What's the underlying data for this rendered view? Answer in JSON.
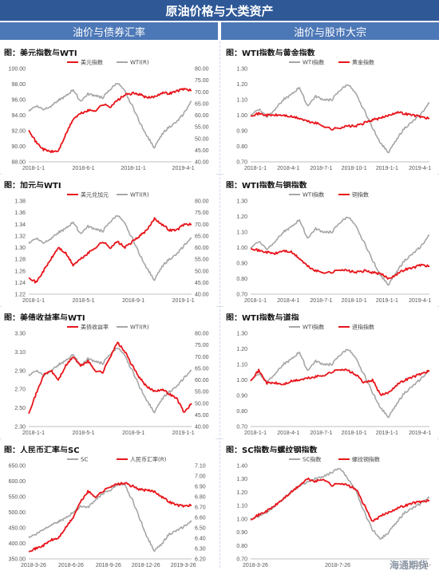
{
  "header": {
    "title": "原油价格与大类资产",
    "left_section": "油价与债券汇率",
    "right_section": "油价与股市大宗"
  },
  "watermark": "海通期货",
  "colors": {
    "red": "#e8151b",
    "gray": "#a6a6a6",
    "title_bg": "#2f5897",
    "section_bg": "#4d78b7"
  },
  "chart_data": [
    {
      "id": "usd-wti",
      "type": "line",
      "title": "图：美元指数与WTI",
      "x_ticks": [
        "2018-1-1",
        "2018-6-1",
        "2018-11-1",
        "2019-4-1"
      ],
      "left_axis": {
        "ylim": [
          88,
          100
        ],
        "ticks": [
          "88.00",
          "90.00",
          "92.00",
          "94.00",
          "96.00",
          "98.00",
          "100.00"
        ]
      },
      "right_axis": {
        "ylim": [
          40,
          80
        ],
        "ticks": [
          "40.00",
          "45.00",
          "50.00",
          "55.00",
          "60.00",
          "65.00",
          "70.00",
          "75.00",
          "80.00"
        ]
      },
      "series": [
        {
          "name": "美元指数",
          "color": "red",
          "axis": "left",
          "values": [
            92.2,
            90.5,
            89.6,
            89.3,
            89.4,
            91.5,
            93.5,
            94.2,
            94.6,
            94.6,
            95.4,
            95.1,
            95.9,
            96.6,
            96.8,
            96.7,
            96.2,
            96.4,
            96.9,
            96.8,
            97.1,
            97.4,
            97.2
          ]
        },
        {
          "name": "WTI(R)",
          "color": "gray",
          "axis": "right",
          "values": [
            62,
            64,
            62.5,
            64,
            66.5,
            68,
            71,
            66,
            69,
            68.5,
            67.5,
            71,
            74,
            70,
            64,
            57,
            51,
            46,
            52,
            55,
            57,
            61,
            66
          ]
        }
      ]
    },
    {
      "id": "wti-gold",
      "type": "line",
      "title": "图：WTI指数与黄金指数",
      "x_ticks": [
        "2018-1-1",
        "2018-4-1",
        "2018-7-1",
        "2018-10-1",
        "2019-1-1",
        "2019-4-1"
      ],
      "left_axis": {
        "ylim": [
          0.7,
          1.3
        ],
        "ticks": [
          "0.70",
          "0.80",
          "0.90",
          "1.00",
          "1.10",
          "1.20",
          "1.30"
        ]
      },
      "series": [
        {
          "name": "WTI指数",
          "color": "gray",
          "axis": "left",
          "values": [
            1.0,
            1.04,
            0.99,
            1.04,
            1.1,
            1.13,
            1.18,
            1.06,
            1.12,
            1.1,
            1.1,
            1.16,
            1.2,
            1.13,
            1.03,
            0.92,
            0.82,
            0.76,
            0.85,
            0.92,
            0.96,
            1.01,
            1.08
          ]
        },
        {
          "name": "黄金指数",
          "color": "red",
          "axis": "left",
          "values": [
            1.0,
            1.01,
            1.0,
            1.0,
            1.0,
            0.99,
            0.98,
            0.96,
            0.95,
            0.93,
            0.91,
            0.92,
            0.93,
            0.93,
            0.95,
            0.97,
            0.98,
            1.0,
            1.02,
            1.01,
            1.0,
            0.99,
            0.98
          ]
        }
      ]
    },
    {
      "id": "cad-wti",
      "type": "line",
      "title": "图：加元与WTI",
      "x_ticks": [
        "2018-1-1",
        "2018-5-1",
        "2018-9-1",
        "2019-1-1"
      ],
      "left_axis": {
        "ylim": [
          1.22,
          1.38
        ],
        "ticks": [
          "1.22",
          "1.24",
          "1.26",
          "1.28",
          "1.30",
          "1.32",
          "1.34",
          "1.36",
          "1.38"
        ]
      },
      "right_axis": {
        "ylim": [
          40,
          80
        ],
        "ticks": [
          "40.00",
          "45.00",
          "50.00",
          "55.00",
          "60.00",
          "65.00",
          "70.00",
          "75.00",
          "80.00"
        ]
      },
      "series": [
        {
          "name": "美元兑加元",
          "color": "red",
          "axis": "left",
          "values": [
            1.25,
            1.24,
            1.26,
            1.28,
            1.3,
            1.29,
            1.27,
            1.28,
            1.29,
            1.3,
            1.31,
            1.3,
            1.31,
            1.3,
            1.31,
            1.32,
            1.33,
            1.35,
            1.34,
            1.33,
            1.33,
            1.34,
            1.34
          ]
        },
        {
          "name": "WTI(R)",
          "color": "gray",
          "axis": "right",
          "values": [
            62,
            64,
            62,
            64,
            66.5,
            68,
            71,
            66,
            69,
            68,
            67,
            71,
            74,
            70,
            64,
            57,
            51,
            46,
            52,
            55,
            57,
            61,
            64
          ]
        }
      ]
    },
    {
      "id": "wti-copper",
      "type": "line",
      "title": "图：WTI指数与铜指数",
      "x_ticks": [
        "2018-1-1",
        "2018-4-1",
        "2018-7-1",
        "2018-10-1",
        "2019-1-1",
        "2019-4-1"
      ],
      "left_axis": {
        "ylim": [
          0.7,
          1.3
        ],
        "ticks": [
          "0.70",
          "0.80",
          "0.90",
          "1.00",
          "1.10",
          "1.20",
          "1.30"
        ]
      },
      "series": [
        {
          "name": "WTI指数",
          "color": "gray",
          "axis": "left",
          "values": [
            1.0,
            1.04,
            0.99,
            1.04,
            1.1,
            1.13,
            1.18,
            1.06,
            1.12,
            1.1,
            1.1,
            1.16,
            1.2,
            1.13,
            1.03,
            0.92,
            0.82,
            0.76,
            0.85,
            0.92,
            0.96,
            1.01,
            1.08
          ]
        },
        {
          "name": "铜指数",
          "color": "red",
          "axis": "left",
          "values": [
            1.0,
            0.98,
            0.97,
            0.96,
            0.98,
            0.97,
            0.93,
            0.88,
            0.85,
            0.84,
            0.84,
            0.86,
            0.85,
            0.84,
            0.85,
            0.84,
            0.83,
            0.8,
            0.83,
            0.86,
            0.87,
            0.89,
            0.88
          ]
        }
      ]
    },
    {
      "id": "ust-wti",
      "type": "line",
      "title": "图：美债收益率与WTI",
      "x_ticks": [
        "2018-1-1",
        "2018-5-1",
        "2018-9-1",
        "2019-1-1"
      ],
      "left_axis": {
        "ylim": [
          2.3,
          3.3
        ],
        "ticks": [
          "2.30",
          "2.50",
          "2.70",
          "2.90",
          "3.10",
          "3.30"
        ]
      },
      "right_axis": {
        "ylim": [
          40,
          80
        ],
        "ticks": [
          "40.00",
          "45.00",
          "50.00",
          "55.00",
          "60.00",
          "65.00",
          "70.00",
          "75.00",
          "80.00"
        ]
      },
      "series": [
        {
          "name": "美债收益率",
          "color": "red",
          "axis": "left",
          "values": [
            2.45,
            2.65,
            2.85,
            2.9,
            2.8,
            2.95,
            3.05,
            2.95,
            3.0,
            2.9,
            2.88,
            3.05,
            3.2,
            3.1,
            2.95,
            2.82,
            2.72,
            2.68,
            2.7,
            2.65,
            2.6,
            2.45,
            2.55
          ]
        },
        {
          "name": "WTI(R)",
          "color": "gray",
          "axis": "right",
          "values": [
            62,
            64,
            62,
            64,
            66.5,
            68,
            71,
            66,
            69,
            68,
            67,
            71,
            74,
            70,
            64,
            57,
            51,
            46,
            52,
            55,
            57,
            61,
            64
          ]
        }
      ]
    },
    {
      "id": "wti-sp",
      "type": "line",
      "title": "图：WTI指数与道指",
      "x_ticks": [
        "2018-1-1",
        "2018-4-1",
        "2018-7-1",
        "2018-10-1",
        "2019-1-1",
        "2019-4-1"
      ],
      "left_axis": {
        "ylim": [
          0.7,
          1.3
        ],
        "ticks": [
          "0.70",
          "0.80",
          "0.90",
          "1.00",
          "1.10",
          "1.20",
          "1.30"
        ]
      },
      "series": [
        {
          "name": "WTI指数",
          "color": "gray",
          "axis": "left",
          "values": [
            1.0,
            1.04,
            0.99,
            1.04,
            1.1,
            1.13,
            1.18,
            1.06,
            1.12,
            1.1,
            1.1,
            1.16,
            1.2,
            1.13,
            1.03,
            0.92,
            0.82,
            0.76,
            0.85,
            0.92,
            0.96,
            1.01,
            1.06
          ]
        },
        {
          "name": "道指指数",
          "color": "red",
          "axis": "left",
          "values": [
            1.0,
            1.06,
            0.98,
            0.98,
            0.97,
            0.99,
            1.0,
            1.01,
            1.02,
            1.03,
            1.05,
            1.07,
            1.06,
            1.03,
            0.98,
            1.0,
            0.9,
            0.92,
            0.97,
            1.0,
            1.02,
            1.04,
            1.06
          ]
        }
      ]
    },
    {
      "id": "cny-sc",
      "type": "line",
      "title": "图：人民币汇率与SC",
      "x_ticks": [
        "2018-3-26",
        "2018-6-26",
        "2018-9-26",
        "2018-12-26",
        "2019-3-26"
      ],
      "left_axis": {
        "ylim": [
          350,
          650
        ],
        "ticks": [
          "350.00",
          "400.00",
          "450.00",
          "500.00",
          "550.00",
          "600.00",
          "650.00"
        ]
      },
      "right_axis": {
        "ylim": [
          6.2,
          7.1
        ],
        "ticks": [
          "6.20",
          "6.30",
          "6.40",
          "6.50",
          "6.60",
          "6.70",
          "6.80",
          "6.90",
          "7.00",
          "7.10"
        ]
      },
      "series": [
        {
          "name": "SC",
          "color": "gray",
          "axis": "left",
          "values": [
            420,
            430,
            445,
            460,
            470,
            480,
            500,
            520,
            515,
            540,
            560,
            570,
            590,
            585,
            540,
            480,
            420,
            375,
            400,
            430,
            440,
            455,
            470
          ]
        },
        {
          "name": "人民币汇率(R)",
          "color": "red",
          "axis": "right",
          "values": [
            6.28,
            6.3,
            6.33,
            6.38,
            6.4,
            6.5,
            6.6,
            6.75,
            6.85,
            6.8,
            6.85,
            6.9,
            6.92,
            6.93,
            6.9,
            6.87,
            6.86,
            6.85,
            6.8,
            6.75,
            6.72,
            6.71,
            6.72
          ]
        }
      ]
    },
    {
      "id": "sc-rebar",
      "type": "line",
      "title": "图：SC指数与螺纹钢指数",
      "x_ticks": [
        "2018-3-26",
        "2018-7-26",
        "2018-11-"
      ],
      "left_axis": {
        "ylim": [
          0.7,
          1.4
        ],
        "ticks": [
          "0.70",
          "0.80",
          "0.90",
          "1.00",
          "1.10",
          "1.20",
          "1.30",
          "1.40"
        ]
      },
      "series": [
        {
          "name": "SC指数",
          "color": "gray",
          "axis": "left",
          "values": [
            1.0,
            1.02,
            1.05,
            1.1,
            1.15,
            1.2,
            1.25,
            1.28,
            1.3,
            1.32,
            1.35,
            1.38,
            1.3,
            1.2,
            1.05,
            0.92,
            0.85,
            0.9,
            0.98,
            1.05,
            1.08,
            1.12,
            1.16
          ]
        },
        {
          "name": "螺纹钢指数",
          "color": "red",
          "axis": "left",
          "values": [
            1.0,
            1.03,
            1.06,
            1.1,
            1.15,
            1.2,
            1.25,
            1.3,
            1.28,
            1.3,
            1.25,
            1.27,
            1.25,
            1.22,
            1.1,
            0.98,
            1.02,
            1.05,
            1.08,
            1.1,
            1.12,
            1.13,
            1.14
          ]
        }
      ]
    }
  ]
}
